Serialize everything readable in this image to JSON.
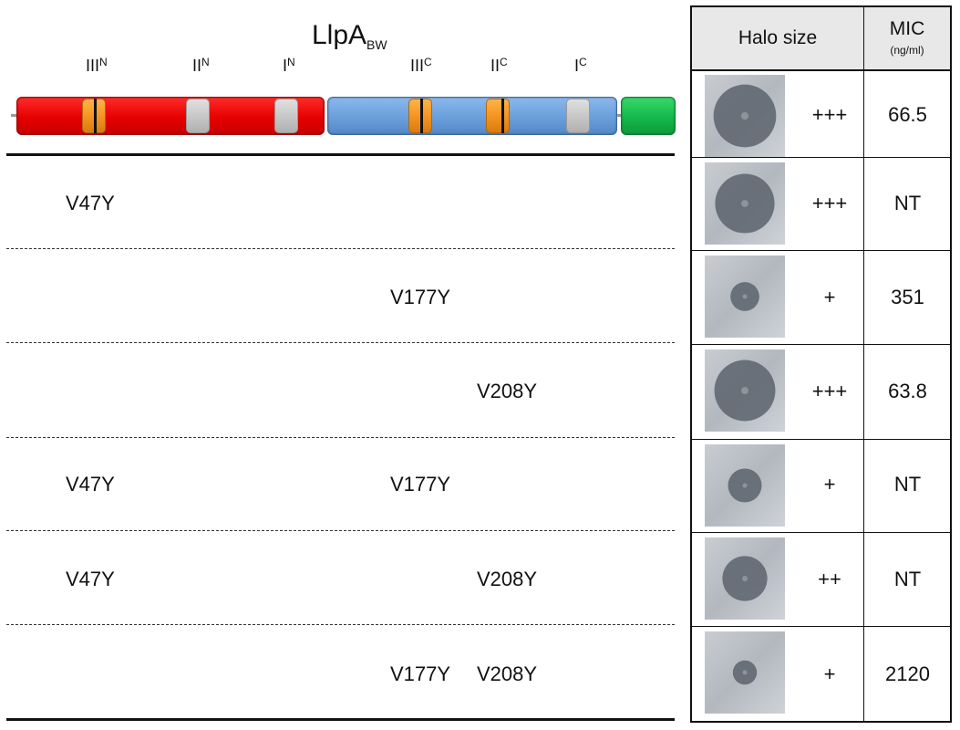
{
  "protein": {
    "name": "LlpA",
    "subscript": "BW",
    "motifs": [
      {
        "roman": "III",
        "sup": "N"
      },
      {
        "roman": "II",
        "sup": "N"
      },
      {
        "roman": "I",
        "sup": "N"
      },
      {
        "roman": "III",
        "sup": "C"
      },
      {
        "roman": "II",
        "sup": "C"
      },
      {
        "roman": "I",
        "sup": "C"
      }
    ]
  },
  "colors": {
    "n_domain": "#e60000",
    "c_domain": "#6a9fdc",
    "tail": "#14b84a",
    "motif_mutated": "#f3921f",
    "motif_other": "#c6c6c6"
  },
  "table": {
    "header_halo": "Halo size",
    "header_mic": "MIC",
    "header_mic_unit": "(ng/ml)"
  },
  "rows": [
    {
      "mutations": [
        "",
        "",
        ""
      ],
      "halo": "+++",
      "mic": "66.5",
      "halo_diameter_frac": 0.78,
      "center_dot": true
    },
    {
      "mutations": [
        "V47Y",
        "",
        ""
      ],
      "halo": "+++",
      "mic": "NT",
      "halo_diameter_frac": 0.74,
      "center_dot": true
    },
    {
      "mutations": [
        "",
        "V177Y",
        ""
      ],
      "halo": "+",
      "mic": "351",
      "halo_diameter_frac": 0.36,
      "center_dot": true
    },
    {
      "mutations": [
        "",
        "",
        "V208Y"
      ],
      "halo": "+++",
      "mic": "63.8",
      "halo_diameter_frac": 0.76,
      "center_dot": true
    },
    {
      "mutations": [
        "V47Y",
        "V177Y",
        ""
      ],
      "halo": "+",
      "mic": "NT",
      "halo_diameter_frac": 0.42,
      "center_dot": true
    },
    {
      "mutations": [
        "V47Y",
        "",
        "V208Y"
      ],
      "halo": "++",
      "mic": "NT",
      "halo_diameter_frac": 0.56,
      "center_dot": true
    },
    {
      "mutations": [
        "",
        "V177Y",
        "V208Y"
      ],
      "halo": "+",
      "mic": "2120",
      "halo_diameter_frac": 0.3,
      "center_dot": true
    }
  ]
}
